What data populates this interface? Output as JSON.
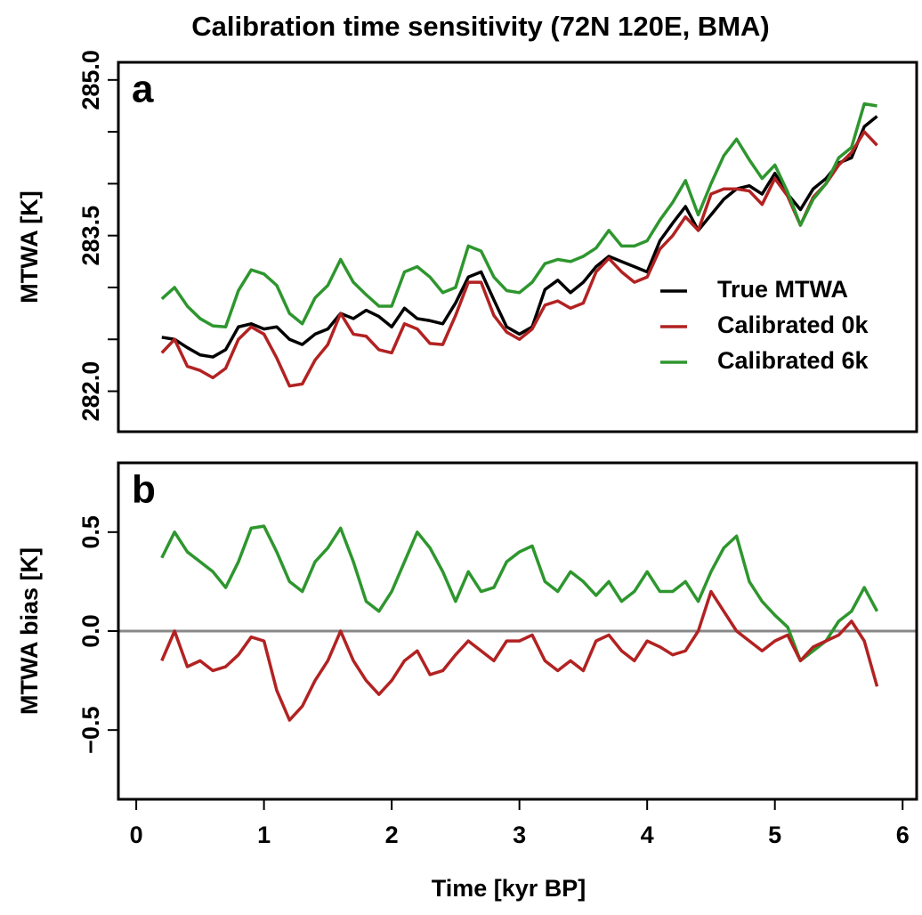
{
  "chart_data": [
    {
      "type": "line",
      "title": "Calibration time sensitivity (72N 120E, BMA)",
      "panel_label": "a",
      "ylabel": "MTWA [K]",
      "x": [
        0.2,
        0.3,
        0.4,
        0.5,
        0.6,
        0.7,
        0.8,
        0.9,
        1.0,
        1.1,
        1.2,
        1.3,
        1.4,
        1.5,
        1.6,
        1.7,
        1.8,
        1.9,
        2.0,
        2.1,
        2.2,
        2.3,
        2.4,
        2.5,
        2.6,
        2.7,
        2.8,
        2.9,
        3.0,
        3.1,
        3.2,
        3.3,
        3.4,
        3.5,
        3.6,
        3.7,
        3.8,
        3.9,
        4.0,
        4.1,
        4.2,
        4.3,
        4.4,
        4.5,
        4.6,
        4.7,
        4.8,
        4.9,
        5.0,
        5.1,
        5.2,
        5.3,
        5.4,
        5.5,
        5.6,
        5.7,
        5.8
      ],
      "series": [
        {
          "name": "True MTWA",
          "color": "#000000",
          "values": [
            282.52,
            282.5,
            282.42,
            282.35,
            282.33,
            282.4,
            282.62,
            282.65,
            282.6,
            282.62,
            282.5,
            282.45,
            282.55,
            282.6,
            282.75,
            282.7,
            282.78,
            282.72,
            282.62,
            282.8,
            282.7,
            282.68,
            282.65,
            282.85,
            283.1,
            283.15,
            282.88,
            282.62,
            282.55,
            282.62,
            282.98,
            283.07,
            282.95,
            283.05,
            283.2,
            283.3,
            283.25,
            283.2,
            283.15,
            283.45,
            283.62,
            283.78,
            283.55,
            283.7,
            283.85,
            283.95,
            283.98,
            283.9,
            284.1,
            283.9,
            283.75,
            283.95,
            284.05,
            284.2,
            284.25,
            284.55,
            284.65
          ]
        },
        {
          "name": "Calibrated 0k",
          "color": "#b22222",
          "values": [
            282.37,
            282.5,
            282.24,
            282.2,
            282.13,
            282.22,
            282.5,
            282.62,
            282.55,
            282.32,
            282.05,
            282.07,
            282.3,
            282.45,
            282.75,
            282.55,
            282.53,
            282.4,
            282.37,
            282.65,
            282.6,
            282.46,
            282.45,
            282.73,
            283.05,
            283.05,
            282.73,
            282.57,
            282.5,
            282.6,
            282.83,
            282.87,
            282.8,
            282.85,
            283.15,
            283.28,
            283.15,
            283.05,
            283.1,
            283.37,
            283.5,
            283.68,
            283.55,
            283.9,
            283.95,
            283.95,
            283.93,
            283.8,
            284.05,
            283.88,
            283.6,
            283.87,
            284.0,
            284.18,
            284.3,
            284.5,
            284.37
          ]
        },
        {
          "name": "Calibrated 6k",
          "color": "#2e962e",
          "values": [
            282.89,
            283.0,
            282.82,
            282.7,
            282.63,
            282.62,
            282.97,
            283.17,
            283.13,
            283.02,
            282.75,
            282.65,
            282.9,
            283.02,
            283.27,
            283.05,
            282.93,
            282.82,
            282.82,
            283.15,
            283.2,
            283.1,
            282.95,
            283.0,
            283.4,
            283.35,
            283.1,
            282.97,
            282.95,
            283.05,
            283.23,
            283.27,
            283.25,
            283.3,
            283.38,
            283.55,
            283.4,
            283.4,
            283.45,
            283.65,
            283.82,
            284.03,
            283.7,
            284.0,
            284.27,
            284.43,
            284.23,
            284.05,
            284.18,
            283.92,
            283.6,
            283.85,
            284.0,
            284.25,
            284.35,
            284.77,
            284.75
          ]
        }
      ],
      "xlim": [
        -0.14,
        6.11
      ],
      "ylim": [
        281.61,
        285.17
      ],
      "yticks": [
        {
          "value": 282,
          "label": "282.0"
        },
        {
          "value": 283.5,
          "label": "283.5"
        },
        {
          "value": 285,
          "label": "285.0"
        }
      ],
      "minor_yticks": [
        282.5,
        283,
        284,
        284.5
      ],
      "legend": "right"
    },
    {
      "type": "line",
      "panel_label": "b",
      "ylabel": "MTWA bias [K]",
      "xlabel": "Time [kyr BP]",
      "x": [
        0.2,
        0.3,
        0.4,
        0.5,
        0.6,
        0.7,
        0.8,
        0.9,
        1.0,
        1.1,
        1.2,
        1.3,
        1.4,
        1.5,
        1.6,
        1.7,
        1.8,
        1.9,
        2.0,
        2.1,
        2.2,
        2.3,
        2.4,
        2.5,
        2.6,
        2.7,
        2.8,
        2.9,
        3.0,
        3.1,
        3.2,
        3.3,
        3.4,
        3.5,
        3.6,
        3.7,
        3.8,
        3.9,
        4.0,
        4.1,
        4.2,
        4.3,
        4.4,
        4.5,
        4.6,
        4.7,
        4.8,
        4.9,
        5.0,
        5.1,
        5.2,
        5.3,
        5.4,
        5.5,
        5.6,
        5.7,
        5.8
      ],
      "series": [
        {
          "color": "#2e962e",
          "values": [
            0.37,
            0.5,
            0.4,
            0.35,
            0.3,
            0.22,
            0.35,
            0.52,
            0.53,
            0.4,
            0.25,
            0.2,
            0.35,
            0.42,
            0.52,
            0.35,
            0.15,
            0.1,
            0.2,
            0.35,
            0.5,
            0.42,
            0.3,
            0.15,
            0.3,
            0.2,
            0.22,
            0.35,
            0.4,
            0.43,
            0.25,
            0.2,
            0.3,
            0.25,
            0.18,
            0.25,
            0.15,
            0.2,
            0.3,
            0.2,
            0.2,
            0.25,
            0.15,
            0.3,
            0.42,
            0.48,
            0.25,
            0.15,
            0.08,
            0.02,
            -0.15,
            -0.1,
            -0.05,
            0.05,
            0.1,
            0.22,
            0.1
          ]
        },
        {
          "color": "#b22222",
          "values": [
            -0.15,
            0,
            -0.18,
            -0.15,
            -0.2,
            -0.18,
            -0.12,
            -0.03,
            -0.05,
            -0.3,
            -0.45,
            -0.38,
            -0.25,
            -0.15,
            0,
            -0.15,
            -0.25,
            -0.32,
            -0.25,
            -0.15,
            -0.1,
            -0.22,
            -0.2,
            -0.12,
            -0.05,
            -0.1,
            -0.15,
            -0.05,
            -0.05,
            -0.02,
            -0.15,
            -0.2,
            -0.15,
            -0.2,
            -0.05,
            -0.02,
            -0.1,
            -0.15,
            -0.05,
            -0.08,
            -0.12,
            -0.1,
            0,
            0.2,
            0.1,
            0,
            -0.05,
            -0.1,
            -0.05,
            -0.02,
            -0.15,
            -0.08,
            -0.05,
            -0.02,
            0.05,
            -0.05,
            -0.28
          ]
        }
      ],
      "hline": 0,
      "hline_color": "#888888",
      "xlim": [
        -0.14,
        6.11
      ],
      "ylim": [
        -0.85,
        0.85
      ],
      "xticks": [
        0,
        1,
        2,
        3,
        4,
        5,
        6
      ],
      "yticks": [
        {
          "value": -0.5,
          "label": "−0.5"
        },
        {
          "value": 0,
          "label": "0.0"
        },
        {
          "value": 0.5,
          "label": "0.5"
        }
      ]
    }
  ]
}
